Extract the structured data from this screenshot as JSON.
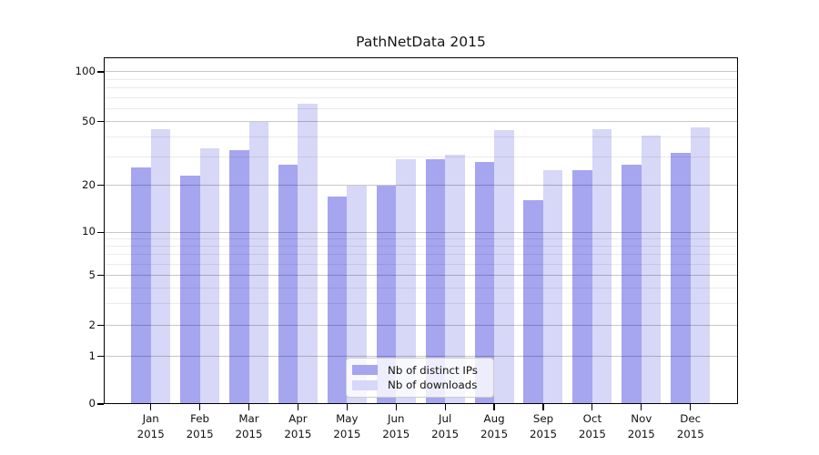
{
  "title": "PathNetData 2015",
  "legend": {
    "items": [
      {
        "label": "Nb of distinct IPs",
        "color": "#a5a5f0"
      },
      {
        "label": "Nb of downloads",
        "color": "#d7d7f7"
      }
    ]
  },
  "y_axis": {
    "tick_labels": [
      "0",
      "1",
      "2",
      "5",
      "10",
      "20",
      "50",
      "100"
    ]
  },
  "x_axis": {
    "year": "2015",
    "months": [
      "Jan",
      "Feb",
      "Mar",
      "Apr",
      "May",
      "Jun",
      "Jul",
      "Aug",
      "Sep",
      "Oct",
      "Nov",
      "Dec"
    ]
  },
  "chart_data": {
    "type": "bar",
    "title": "PathNetData 2015",
    "categories": [
      "Jan 2015",
      "Feb 2015",
      "Mar 2015",
      "Apr 2015",
      "May 2015",
      "Jun 2015",
      "Jul 2015",
      "Aug 2015",
      "Sep 2015",
      "Oct 2015",
      "Nov 2015",
      "Dec 2015"
    ],
    "series": [
      {
        "name": "Nb of distinct IPs",
        "color": "#a5a5f0",
        "values": [
          26,
          23,
          33,
          27,
          17,
          20,
          29,
          28,
          16,
          25,
          27,
          32
        ]
      },
      {
        "name": "Nb of downloads",
        "color": "#d7d7f7",
        "values": [
          45,
          34,
          50,
          64,
          20,
          29,
          31,
          44,
          25,
          45,
          41,
          46
        ]
      }
    ],
    "xlabel": "",
    "ylabel": "",
    "y_scale": "symlog",
    "yticks": [
      0,
      1,
      2,
      5,
      10,
      20,
      50,
      100
    ],
    "ytick_norm_positions": [
      0,
      0.1372,
      0.2263,
      0.3706,
      0.4957,
      0.6302,
      0.8148,
      0.9581
    ],
    "minor_gridline_values": [
      3,
      4,
      6,
      7,
      8,
      9,
      30,
      40,
      60,
      70,
      80,
      90
    ],
    "grid": true,
    "legend_position": "lower center"
  }
}
